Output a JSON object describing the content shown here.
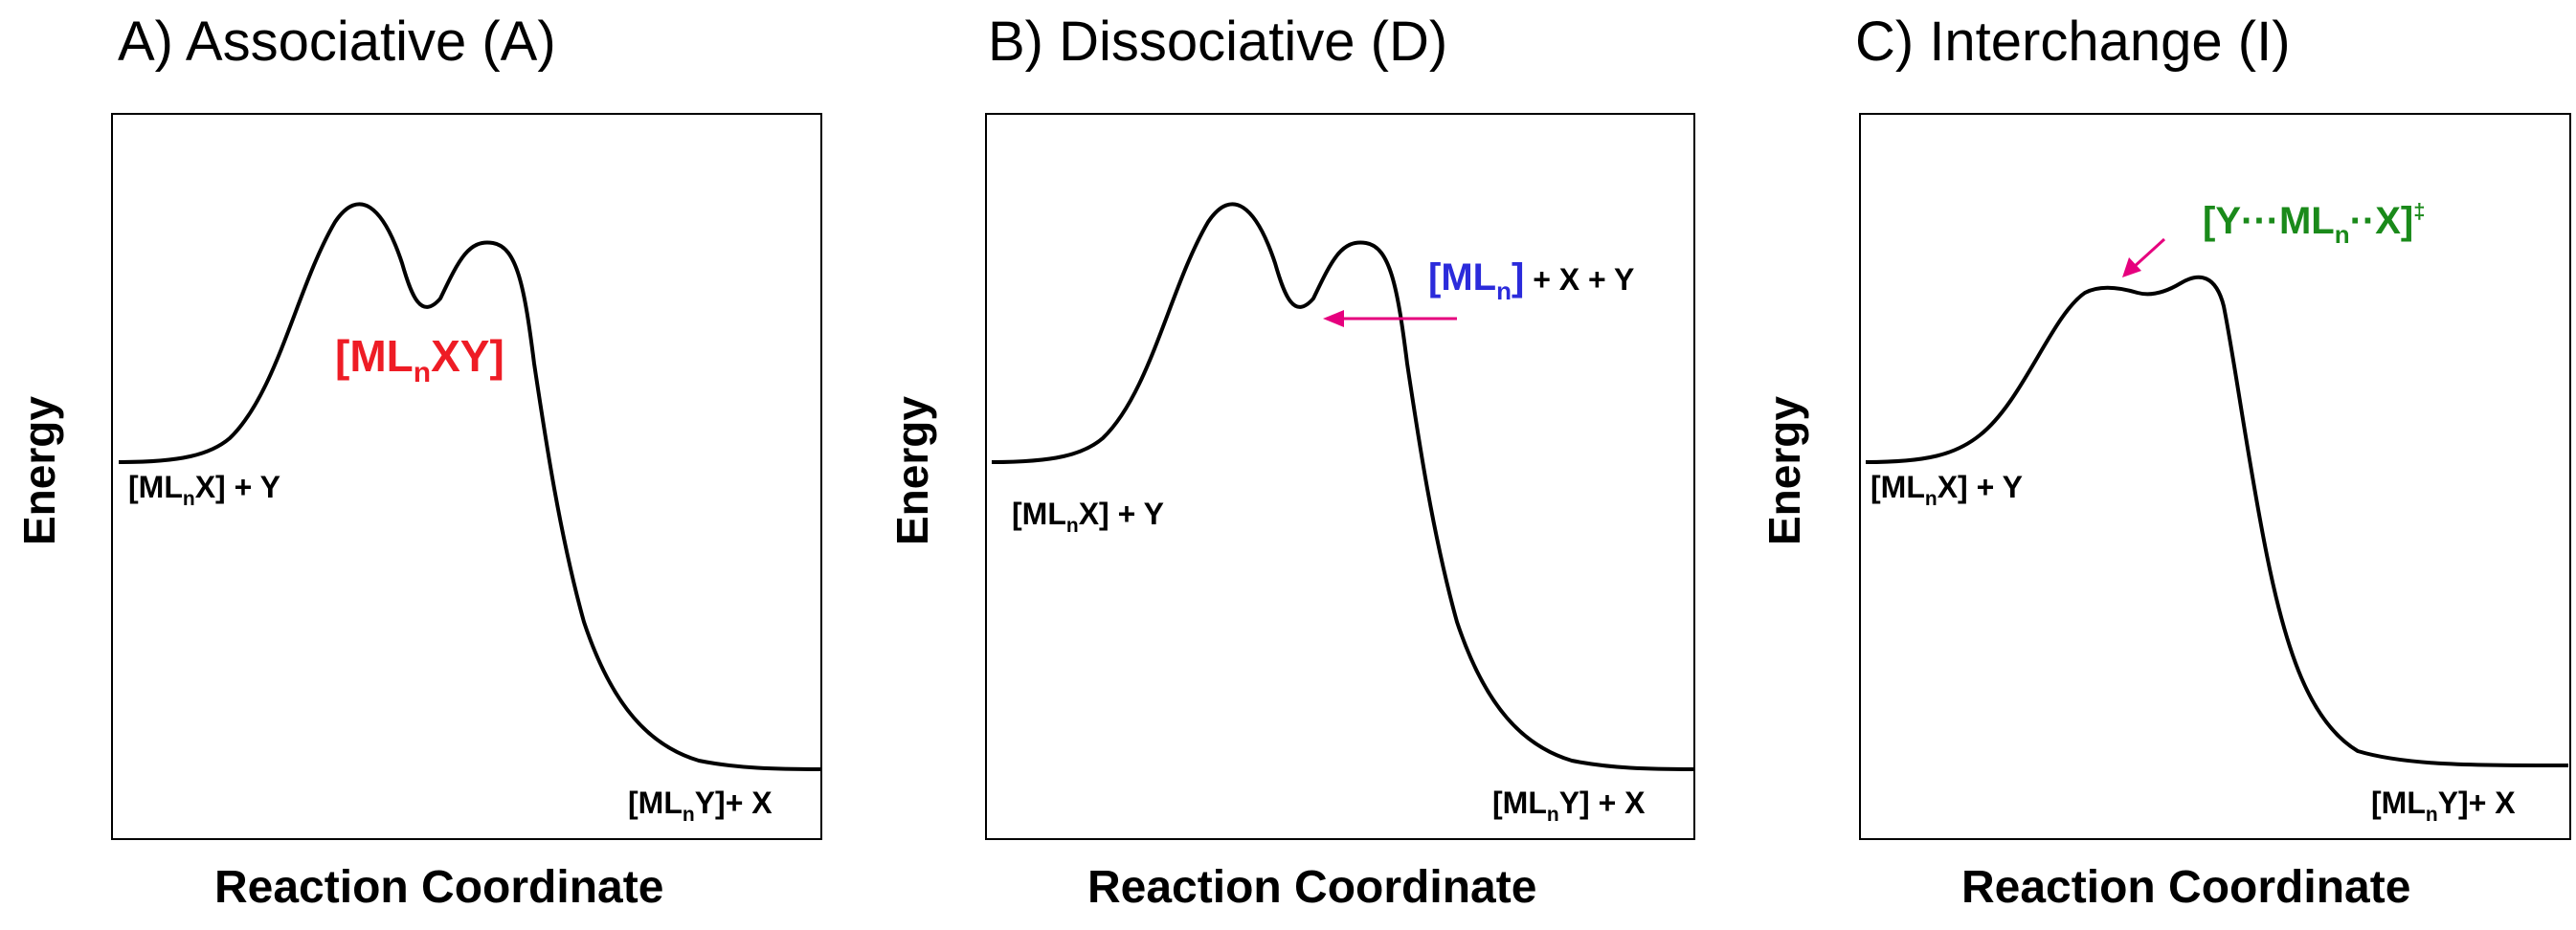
{
  "panels": [
    {
      "title": "A) Associative (A)",
      "ylabel": "Energy",
      "xlabel": "Reaction Coordinate",
      "reactant": {
        "base": "[ML",
        "sub": "n",
        "rest": "X] + Y"
      },
      "product": {
        "base": "[ML",
        "sub": "n",
        "rest": "Y]+ X"
      },
      "intermediate": {
        "base": "[ML",
        "sub": "n",
        "rest": "XY]",
        "color": "#ee1c25"
      }
    },
    {
      "title": "B) Dissociative (D)",
      "ylabel": "Energy",
      "xlabel": "Reaction Coordinate",
      "reactant": {
        "base": "[ML",
        "sub": "n",
        "rest": "X] + Y"
      },
      "product": {
        "base": "[ML",
        "sub": "n",
        "rest": "Y] + X"
      },
      "intermediate": {
        "base": "[ML",
        "sub": "n",
        "rest": "]",
        "tail": " + X + Y",
        "color": "#2b2bdb"
      },
      "arrow_color": "#e6007e"
    },
    {
      "title": "C) Interchange (I)",
      "ylabel": "Energy",
      "xlabel": "Reaction Coordinate",
      "reactant": {
        "base": "[ML",
        "sub": "n",
        "rest": "X] + Y"
      },
      "product": {
        "base": "[ML",
        "sub": "n",
        "rest": "Y]+ X"
      },
      "transition_state": {
        "pre": "[Y···ML",
        "sub": "n",
        "mid": "··X]",
        "sup": "‡",
        "color": "#1a8a1a"
      },
      "arrow_color": "#e6007e"
    }
  ]
}
